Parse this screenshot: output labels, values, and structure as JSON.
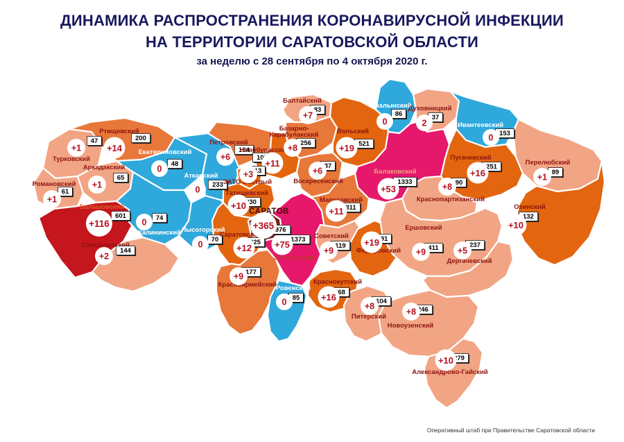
{
  "header": {
    "title_line1": "ДИНАМИКА РАСПРОСТРАНЕНИЯ КОРОНАВИРУСНОЙ ИНФЕКЦИИ",
    "title_line2": "НА ТЕРРИТОРИИ САРАТОВСКОЙ ОБЛАСТИ",
    "subtitle": "за неделю с 28 сентября по 4 октября 2020 г."
  },
  "footer": {
    "credit": "Оперативный штаб при Правительстве Саратовской области"
  },
  "palette": {
    "salmon": "#F2A584",
    "medium": "#E8773A",
    "strong": "#E3650F",
    "blue": "#2FA8DC",
    "crimson": "#E6186B",
    "darkred": "#C4161C",
    "maroon": "#7A2022",
    "increment_text": "#B50F1F",
    "district_name_text": "#8E1511",
    "title_text": "#18185e"
  },
  "districts": [
    {
      "id": "turkovsky",
      "name": "Турковский",
      "weekly": "+1",
      "total": "47",
      "level": "salmon"
    },
    {
      "id": "rtishchevsky",
      "name": "Ртищевский",
      "weekly": "+14",
      "total": "200",
      "level": "medium"
    },
    {
      "id": "romanovsky",
      "name": "Романовский",
      "weekly": "+1",
      "total": "61",
      "level": "salmon"
    },
    {
      "id": "arkadaksky",
      "name": "Аркадакский",
      "weekly": "+1",
      "total": "65",
      "level": "salmon"
    },
    {
      "id": "ekaterinovsky",
      "name": "Екатериновский",
      "weekly": "0",
      "total": "48",
      "level": "blue"
    },
    {
      "id": "balashovsky",
      "name": "Балашовский",
      "weekly": "+116",
      "total": "601",
      "level": "darkred"
    },
    {
      "id": "samoylovsky",
      "name": "Самойловский",
      "weekly": "+2",
      "total": "144",
      "level": "salmon"
    },
    {
      "id": "kalininsky",
      "name": "Калининский",
      "weekly": "0",
      "total": "74",
      "level": "blue"
    },
    {
      "id": "lysogorsky",
      "name": "Лысогорский",
      "weekly": "0",
      "total": "70",
      "level": "blue"
    },
    {
      "id": "atkarsky",
      "name": "Аткарский",
      "weekly": "0",
      "total": "233",
      "level": "blue"
    },
    {
      "id": "petrovsky",
      "name": "Петровский",
      "weekly": "+6",
      "total": "164",
      "level": "medium"
    },
    {
      "id": "novoburassky",
      "name": "Новобурасский",
      "weekly": "+11",
      "total": "107",
      "level": "strong"
    },
    {
      "id": "bazarno",
      "name": "Базарно-",
      "name2": "Карабулакский",
      "weekly": "+8",
      "total": "256",
      "level": "medium"
    },
    {
      "id": "baltaysky",
      "name": "Балтайский",
      "weekly": "+7",
      "total": "83",
      "level": "salmon"
    },
    {
      "id": "volsky",
      "name": "Вольский",
      "weekly": "+19",
      "total": "521",
      "level": "strong"
    },
    {
      "id": "khvalynsky",
      "name": "Хвалынский",
      "weekly": "0",
      "total": "86",
      "level": "blue"
    },
    {
      "id": "dukhovnitsky",
      "name": "Духовницкий",
      "weekly": "2",
      "total": "37",
      "level": "salmon"
    },
    {
      "id": "ivanteevsky",
      "name": "Ивантеевский",
      "weekly": "0",
      "total": "153",
      "level": "blue"
    },
    {
      "id": "pugachevsky",
      "name": "Пугачевский",
      "weekly": "+16",
      "total": "251",
      "level": "strong"
    },
    {
      "id": "perelyubsky",
      "name": "Перелюбский",
      "weekly": "+1",
      "total": "89",
      "level": "salmon"
    },
    {
      "id": "krasnopartizansky",
      "name": "Краснопартизанский",
      "weekly": "+8",
      "total": "90",
      "level": "salmon"
    },
    {
      "id": "ozinsky",
      "name": "Озинский",
      "weekly": "+10",
      "total": "132",
      "level": "strong"
    },
    {
      "id": "voskresensky",
      "name": "Воскресенский",
      "weekly": "+6",
      "total": "37",
      "level": "medium"
    },
    {
      "id": "balakovsky",
      "name": "Балаковский",
      "weekly": "+53",
      "total": "1333",
      "level": "crimson"
    },
    {
      "id": "marksovsky",
      "name": "Марксовский",
      "weekly": "+11",
      "total": "311",
      "level": "medium"
    },
    {
      "id": "zato",
      "name": "ЗАТО Светлый",
      "weekly": "+3",
      "total": "13",
      "level": "strong"
    },
    {
      "id": "tatishchevsky",
      "name": "Татищевский",
      "weekly": "+10",
      "total": "230",
      "level": "strong"
    },
    {
      "id": "saratovsky",
      "name": "Саратовский",
      "weekly": "+12",
      "total": "225",
      "level": "strong"
    },
    {
      "id": "engelssky",
      "name": "Энгельсский",
      "weekly": "+75",
      "total": "1373",
      "level": "crimson"
    },
    {
      "id": "saratov",
      "name": "САРАТОВ",
      "weekly": "+365",
      "total": "6976",
      "level": "maroon"
    },
    {
      "id": "sovetsky",
      "name": "Советский",
      "weekly": "+9",
      "total": "119",
      "level": "salmon"
    },
    {
      "id": "fedorovsky",
      "name": "Федоровский",
      "weekly": "+19",
      "total": "91",
      "level": "strong"
    },
    {
      "id": "ershovsky",
      "name": "Ершовский",
      "weekly": "+9",
      "total": "411",
      "level": "salmon"
    },
    {
      "id": "dergachevsky",
      "name": "Дергачевский",
      "weekly": "+5",
      "total": "237",
      "level": "salmon"
    },
    {
      "id": "krasnoarmeysky",
      "name": "Красноармейский",
      "weekly": "+9",
      "total": "177",
      "level": "medium"
    },
    {
      "id": "rovensky",
      "name": "Ровенский",
      "weekly": "0",
      "total": "85",
      "level": "blue"
    },
    {
      "id": "krasnokutsky",
      "name": "Краснокутский",
      "weekly": "+16",
      "total": "268",
      "level": "strong"
    },
    {
      "id": "pitersky",
      "name": "Питерский",
      "weekly": "+8",
      "total": "104",
      "level": "salmon"
    },
    {
      "id": "novouzensky",
      "name": "Новоузенский",
      "weekly": "+8",
      "total": "246",
      "level": "salmon"
    },
    {
      "id": "algay",
      "name": "Александрово-Гайский",
      "weekly": "+10",
      "total": "279",
      "level": "salmon"
    }
  ]
}
